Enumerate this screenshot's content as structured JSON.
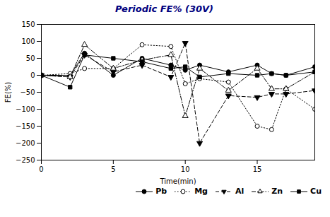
{
  "chart_data": {
    "type": "line",
    "title": "Periodic FE% (30V)",
    "x_label": "Time(min)",
    "y_label": "FE(%)",
    "x": [
      0,
      2,
      3,
      5,
      7,
      9,
      10,
      11,
      13,
      15,
      16,
      17,
      19
    ],
    "series": [
      {
        "name": "Pb",
        "color": "black",
        "line_style": "solid",
        "marker": "circle",
        "values": [
          0,
          0,
          65,
          0,
          50,
          30,
          15,
          30,
          10,
          30,
          5,
          0,
          25
        ]
      },
      {
        "name": "Mg",
        "color": "black",
        "line_style": "dotted",
        "marker": "circle-open",
        "values": [
          0,
          5,
          20,
          20,
          90,
          85,
          -25,
          -10,
          -20,
          -150,
          -160,
          -40,
          -100
        ]
      },
      {
        "name": "Al",
        "color": "black",
        "line_style": "dashed",
        "marker": "triangle-down",
        "values": [
          0,
          -5,
          60,
          10,
          30,
          -5,
          95,
          -200,
          -60,
          -65,
          -55,
          -55,
          -45
        ]
      },
      {
        "name": "Zn",
        "color": "black",
        "line_style": "dashdot",
        "marker": "triangle-up-open",
        "values": [
          0,
          -5,
          90,
          20,
          45,
          60,
          -120,
          20,
          -45,
          20,
          -40,
          -40,
          10
        ]
      },
      {
        "name": "Cu",
        "color": "black",
        "line_style": "solid",
        "marker": "square",
        "values": [
          0,
          -35,
          60,
          50,
          40,
          20,
          25,
          -5,
          5,
          0,
          5,
          0,
          10
        ]
      }
    ],
    "xlim": [
      0,
      19
    ],
    "xticks": [
      0,
      5,
      10,
      15
    ],
    "ylim": [
      -250,
      150
    ],
    "yticks": [
      -250,
      -200,
      -150,
      -100,
      -50,
      0,
      50,
      100,
      150
    ],
    "legend": "lower right"
  }
}
